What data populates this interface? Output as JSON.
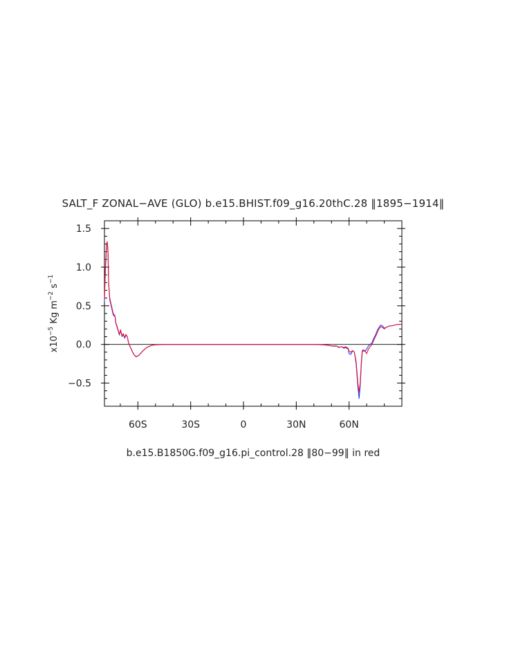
{
  "chart_data": {
    "type": "line",
    "title": "SALT_F ZONAL−AVE (GLO) b.e15.BHIST.f09_g16.20thC.28 ‖1895−1914‖",
    "caption": "b.e15.B1850G.f09_g16.pi_control.28 ‖80−99‖ in red",
    "ylabel": {
      "prefix": "x10",
      "exp1": "−5",
      "mid": " Kg m",
      "exp2": "−2",
      "mid2": " s",
      "exp3": "−1"
    },
    "xlim": [
      -79,
      90
    ],
    "ylim": [
      -0.8,
      1.6
    ],
    "x_ticks": [
      {
        "value": -60,
        "label": "60S"
      },
      {
        "value": -30,
        "label": "30S"
      },
      {
        "value": 0,
        "label": "0"
      },
      {
        "value": 30,
        "label": "30N"
      },
      {
        "value": 60,
        "label": "60N"
      }
    ],
    "y_ticks": [
      {
        "value": 1.5,
        "label": "1.5"
      },
      {
        "value": 1.0,
        "label": "1.0"
      },
      {
        "value": 0.5,
        "label": "0.5"
      },
      {
        "value": 0.0,
        "label": "0.0"
      },
      {
        "value": -0.5,
        "label": "−0.5"
      }
    ],
    "zero_line": true,
    "series": [
      {
        "color": "#1f3cff",
        "x": [
          -79,
          -78.5,
          -77.8,
          -77.4,
          -77.0,
          -76.6,
          -76.0,
          -75.0,
          -74.0,
          -73.0,
          -72.5,
          -71.5,
          -70.5,
          -69.8,
          -69.0,
          -68.3,
          -67.5,
          -66.8,
          -66.0,
          -65.3,
          -64.0,
          -63.0,
          -62.0,
          -61.0,
          -60.0,
          -59.0,
          -57.0,
          -55.0,
          -52.0,
          -50.0,
          -45.0,
          -40.0,
          -30.0,
          -20.0,
          -10.0,
          0.0,
          10.0,
          20.0,
          30.0,
          40.0,
          45.0,
          48.0,
          50.0,
          52.0,
          53.0,
          54.0,
          56.0,
          57.0,
          58.0,
          59.5,
          60.0,
          61.0,
          62.0,
          63.0,
          64.0,
          65.0,
          65.7,
          66.3,
          67.0,
          67.5,
          68.0,
          69.0,
          70.0,
          71.0,
          72.0,
          73.0,
          74.0,
          75.0,
          76.0,
          77.0,
          78.0,
          79.0,
          80.0,
          81.0,
          82.0,
          83.0,
          84.0,
          86.0,
          88.0,
          90.0
        ],
        "y": [
          0.55,
          0.95,
          1.28,
          1.32,
          1.2,
          0.78,
          0.58,
          0.48,
          0.38,
          0.36,
          0.27,
          0.2,
          0.12,
          0.18,
          0.1,
          0.13,
          0.08,
          0.12,
          0.1,
          0.02,
          -0.05,
          -0.1,
          -0.14,
          -0.16,
          -0.15,
          -0.13,
          -0.08,
          -0.04,
          -0.01,
          -0.005,
          0.0,
          0.0,
          0.0,
          0.0,
          0.0,
          0.0,
          0.0,
          0.0,
          0.0,
          0.0,
          -0.005,
          -0.01,
          -0.02,
          -0.025,
          -0.02,
          -0.04,
          -0.03,
          -0.05,
          -0.04,
          -0.06,
          -0.12,
          -0.13,
          -0.08,
          -0.1,
          -0.25,
          -0.55,
          -0.7,
          -0.55,
          -0.25,
          -0.1,
          -0.08,
          -0.09,
          -0.06,
          -0.02,
          0.0,
          0.02,
          0.08,
          0.12,
          0.18,
          0.22,
          0.25,
          0.24,
          0.21,
          0.22,
          0.23,
          0.24,
          0.24,
          0.25,
          0.26,
          0.26
        ]
      },
      {
        "color": "#e8102a",
        "x": [
          -79,
          -78.5,
          -77.8,
          -77.4,
          -77.0,
          -76.6,
          -76.0,
          -75.0,
          -74.0,
          -73.0,
          -72.5,
          -71.5,
          -70.5,
          -69.8,
          -69.0,
          -68.3,
          -67.5,
          -66.8,
          -66.0,
          -65.3,
          -64.0,
          -63.0,
          -62.0,
          -61.0,
          -60.0,
          -59.0,
          -57.0,
          -55.0,
          -52.0,
          -50.0,
          -45.0,
          -40.0,
          -30.0,
          -20.0,
          -10.0,
          0.0,
          10.0,
          20.0,
          30.0,
          40.0,
          45.0,
          48.0,
          50.0,
          52.0,
          53.0,
          54.0,
          56.0,
          57.0,
          58.0,
          59.5,
          60.0,
          61.0,
          62.0,
          63.0,
          64.0,
          65.0,
          65.7,
          66.3,
          67.0,
          67.5,
          68.0,
          69.0,
          70.0,
          71.0,
          72.0,
          73.0,
          74.0,
          75.0,
          76.0,
          77.0,
          78.0,
          79.0,
          80.0,
          81.0,
          82.0,
          83.0,
          84.0,
          86.0,
          88.0,
          90.0
        ],
        "y": [
          0.58,
          0.98,
          1.3,
          1.33,
          1.22,
          0.8,
          0.6,
          0.5,
          0.4,
          0.37,
          0.28,
          0.21,
          0.13,
          0.19,
          0.11,
          0.14,
          0.09,
          0.13,
          0.1,
          0.02,
          -0.05,
          -0.1,
          -0.14,
          -0.155,
          -0.15,
          -0.13,
          -0.08,
          -0.04,
          -0.01,
          -0.005,
          0.0,
          0.0,
          0.0,
          0.0,
          0.0,
          0.0,
          0.0,
          0.0,
          0.0,
          0.0,
          -0.005,
          -0.01,
          -0.02,
          -0.02,
          -0.02,
          -0.035,
          -0.03,
          -0.04,
          -0.03,
          -0.05,
          -0.09,
          -0.1,
          -0.08,
          -0.1,
          -0.22,
          -0.5,
          -0.62,
          -0.5,
          -0.22,
          -0.08,
          -0.07,
          -0.08,
          -0.12,
          -0.06,
          -0.03,
          0.0,
          0.05,
          0.1,
          0.15,
          0.2,
          0.23,
          0.22,
          0.2,
          0.22,
          0.23,
          0.24,
          0.24,
          0.25,
          0.26,
          0.26
        ]
      }
    ]
  }
}
